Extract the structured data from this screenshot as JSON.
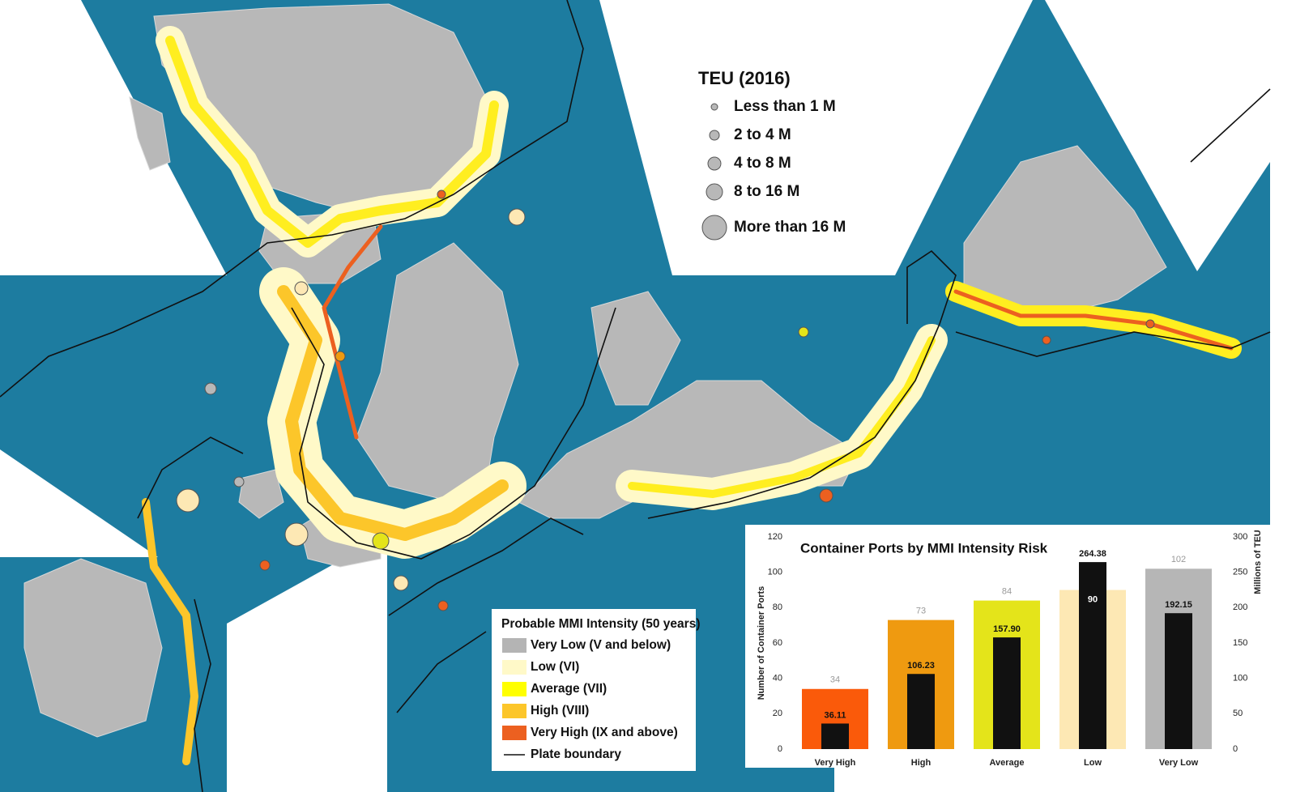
{
  "teu_legend": {
    "title": "TEU (2016)",
    "items": [
      "Less than 1 M",
      "2 to 4 M",
      "4 to 8 M",
      "8 to 16 M",
      "More than 16 M"
    ]
  },
  "mmi_legend": {
    "title": "Probable MMI Intensity (50 years)",
    "items": [
      {
        "label": "Very Low (V and below)",
        "color": "#b4b4b4"
      },
      {
        "label": "Low (VI)",
        "color": "#fff9c8"
      },
      {
        "label": "Average (VII)",
        "color": "#ffff00"
      },
      {
        "label": "High (VIII)",
        "color": "#fcc62a"
      },
      {
        "label": "Very High (IX and above)",
        "color": "#ec6020"
      }
    ],
    "plate_boundary": "Plate boundary"
  },
  "chart_data": {
    "type": "bar",
    "title": "Container Ports by MMI Intensity Risk",
    "y_label": "Number of Container Ports",
    "y2_label": "Millions of TEU",
    "categories": [
      "Very High",
      "High",
      "Average",
      "Low",
      "Very Low"
    ],
    "series": [
      {
        "colors": [
          "#fa5a0a",
          "#ef9a10",
          "#e4e41a",
          "#fde8b4",
          "#b6b6b6"
        ],
        "values": [
          34,
          73,
          84,
          90,
          102
        ]
      },
      {
        "color": "#111111",
        "axis": "y2",
        "values": [
          36.11,
          106.23,
          157.9,
          264.38,
          192.15
        ],
        "value_labels": [
          "36.11",
          "106.23",
          "157.90",
          "264.38",
          "192.15"
        ]
      }
    ],
    "ylim": [
      0,
      120
    ],
    "yticks": [
      0,
      20,
      40,
      60,
      80,
      100,
      120
    ],
    "y2lim": [
      0,
      300
    ],
    "y2ticks": [
      0,
      50,
      100,
      150,
      200,
      250,
      300
    ]
  }
}
